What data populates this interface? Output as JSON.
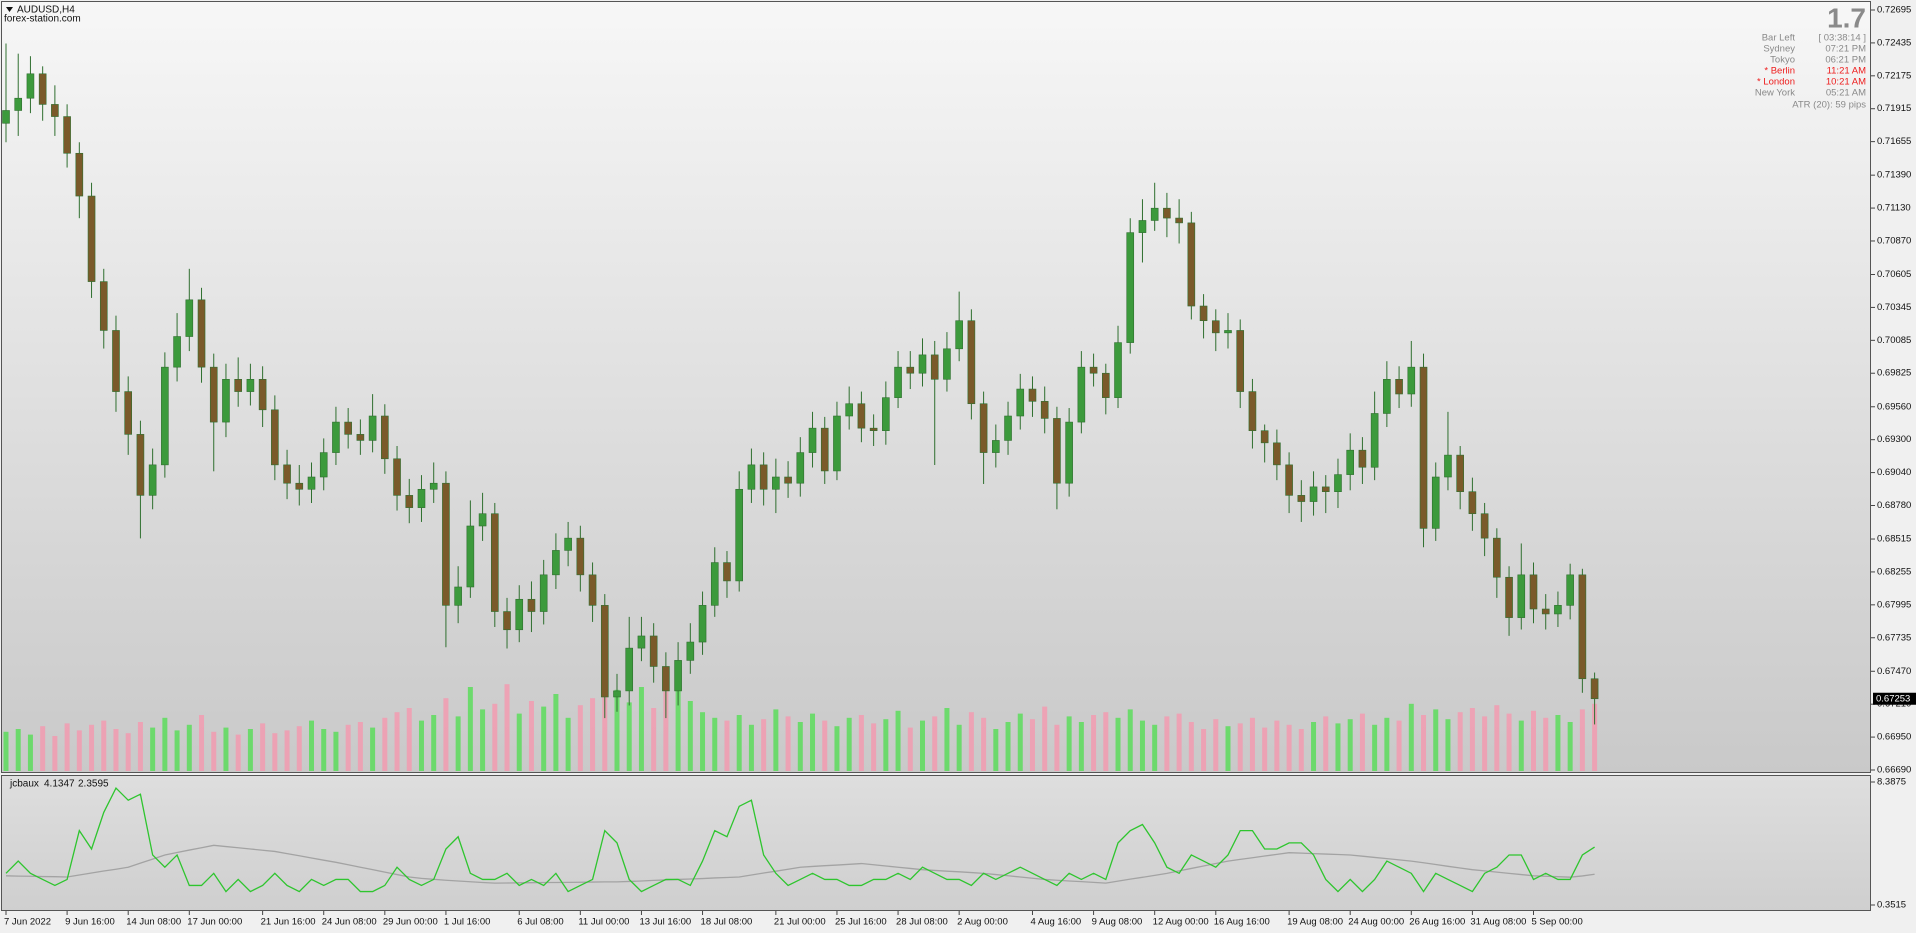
{
  "window": {
    "symbol": "AUDUSD,H4",
    "watermark": "forex-station.com"
  },
  "info_panel": {
    "spread": 1.7,
    "rows": [
      {
        "label": "Bar Left",
        "time": "[ 03:38:14 ]",
        "highlight": false
      },
      {
        "label": "Sydney",
        "time": "07:21 PM",
        "highlight": false
      },
      {
        "label": "Tokyo",
        "time": "06:21 PM",
        "highlight": false
      },
      {
        "label": "* Berlin",
        "time": "11:21 AM",
        "highlight": true
      },
      {
        "label": "* London",
        "time": "10:21 AM",
        "highlight": true
      },
      {
        "label": "New York",
        "time": "05:21 AM",
        "highlight": false
      }
    ],
    "atr": "ATR (20): 59 pips"
  },
  "chart_data": [
    {
      "type": "candlestick",
      "categories": [
        "7 Jun 2022",
        null,
        null,
        null,
        null,
        "9 Jun 16:00",
        null,
        null,
        null,
        null,
        "14 Jun 08:00",
        null,
        null,
        null,
        null,
        "17 Jun 00:00",
        null,
        null,
        null,
        null,
        null,
        "21 Jun 16:00",
        null,
        null,
        null,
        null,
        "24 Jun 08:00",
        null,
        null,
        null,
        null,
        "29 Jun 00:00",
        null,
        null,
        null,
        null,
        "1 Jul 16:00",
        null,
        null,
        null,
        null,
        null,
        "6 Jul 08:00",
        null,
        null,
        null,
        null,
        "11 Jul 00:00",
        null,
        null,
        null,
        null,
        "13 Jul 16:00",
        null,
        null,
        null,
        null,
        "18 Jul 08:00",
        null,
        null,
        null,
        null,
        null,
        "21 Jul 00:00",
        null,
        null,
        null,
        null,
        "25 Jul 16:00",
        null,
        null,
        null,
        null,
        "28 Jul 08:00",
        null,
        null,
        null,
        null,
        "2 Aug 00:00",
        null,
        null,
        null,
        null,
        null,
        "4 Aug 16:00",
        null,
        null,
        null,
        null,
        "9 Aug 08:00",
        null,
        null,
        null,
        null,
        "12 Aug 00:00",
        null,
        null,
        null,
        null,
        "16 Aug 16:00",
        null,
        null,
        null,
        null,
        null,
        "19 Aug 08:00",
        null,
        null,
        null,
        null,
        "24 Aug 00:00",
        null,
        null,
        null,
        null,
        "26 Aug 16:00",
        null,
        null,
        null,
        null,
        "31 Aug 08:00",
        null,
        null,
        null,
        null,
        "5 Sep 00:00",
        null,
        null,
        null,
        null,
        null
      ],
      "open": [
        0.718,
        0.71901,
        0.71998,
        0.72191,
        0.71949,
        0.71853,
        0.71563,
        0.71225,
        0.70549,
        0.70163,
        0.6968,
        0.69342,
        0.6886,
        0.69101,
        0.69873,
        0.70115,
        0.70405,
        0.69873,
        0.69439,
        0.69777,
        0.6968,
        0.69777,
        0.69536,
        0.69101,
        0.68956,
        0.68908,
        0.69005,
        0.69198,
        0.69439,
        0.69342,
        0.69294,
        0.69487,
        0.69149,
        0.6886,
        0.68763,
        0.68908,
        0.68956,
        0.67991,
        0.68136,
        0.68618,
        0.68715,
        0.67942,
        0.67798,
        0.68039,
        0.67942,
        0.68232,
        0.68425,
        0.68522,
        0.68232,
        0.67991,
        0.67267,
        0.67315,
        0.67653,
        0.67749,
        0.67508,
        0.67315,
        0.67556,
        0.67701,
        0.67991,
        0.68329,
        0.68184,
        0.68908,
        0.69101,
        0.68908,
        0.69005,
        0.68956,
        0.69198,
        0.69391,
        0.69053,
        0.69487,
        0.69584,
        0.69391,
        0.69371,
        0.69632,
        0.69873,
        0.69825,
        0.6997,
        0.69777,
        0.70018,
        0.7024,
        0.69584,
        0.69198,
        0.69294,
        0.69487,
        0.697,
        0.69603,
        0.69468,
        0.68956,
        0.69439,
        0.69873,
        0.69825,
        0.69632,
        0.70067,
        0.70936,
        0.71032,
        0.71129,
        0.71051,
        0.71013,
        0.70356,
        0.7024,
        0.70144,
        0.70163,
        0.6968,
        0.69371,
        0.69275,
        0.69101,
        0.6886,
        0.68811,
        0.68927,
        0.68889,
        0.69024,
        0.69217,
        0.69082,
        0.69507,
        0.69777,
        0.69661,
        0.69873,
        0.68599,
        0.69005,
        0.69178,
        0.68889,
        0.68715,
        0.68522,
        0.68213,
        0.67894,
        0.68232,
        0.67962,
        0.67923,
        0.67991,
        0.68232,
        0.67411
      ],
      "high": [
        0.7243,
        0.7235,
        0.7233,
        0.7225,
        0.721,
        0.7195,
        0.7165,
        0.7133,
        0.7065,
        0.7028,
        0.698,
        0.6945,
        0.6923,
        0.6999,
        0.703,
        0.7065,
        0.705,
        0.6998,
        0.699,
        0.6995,
        0.699,
        0.6988,
        0.6965,
        0.6922,
        0.691,
        0.6912,
        0.6931,
        0.6956,
        0.6955,
        0.6946,
        0.6966,
        0.6958,
        0.6925,
        0.6899,
        0.6902,
        0.6912,
        0.6905,
        0.683,
        0.6882,
        0.6888,
        0.688,
        0.6805,
        0.6815,
        0.6818,
        0.6835,
        0.6856,
        0.6865,
        0.6862,
        0.6833,
        0.6808,
        0.6745,
        0.679,
        0.679,
        0.6785,
        0.6762,
        0.677,
        0.6785,
        0.681,
        0.6845,
        0.6842,
        0.6905,
        0.6923,
        0.692,
        0.6915,
        0.6913,
        0.6932,
        0.6952,
        0.6948,
        0.696,
        0.6972,
        0.6968,
        0.695,
        0.6976,
        0.7,
        0.7,
        0.701,
        0.7008,
        0.7015,
        0.7047,
        0.7033,
        0.6968,
        0.6942,
        0.696,
        0.6982,
        0.698,
        0.6972,
        0.6956,
        0.6955,
        0.7,
        0.6998,
        0.699,
        0.702,
        0.7105,
        0.712,
        0.7133,
        0.7125,
        0.712,
        0.711,
        0.7045,
        0.7033,
        0.703,
        0.7025,
        0.6978,
        0.6942,
        0.6938,
        0.692,
        0.6898,
        0.6905,
        0.6902,
        0.6915,
        0.6935,
        0.6932,
        0.6968,
        0.6992,
        0.6988,
        0.7008,
        0.6998,
        0.6912,
        0.6952,
        0.6925,
        0.69,
        0.688,
        0.686,
        0.683,
        0.6848,
        0.6833,
        0.6808,
        0.681,
        0.6832,
        0.6828,
        0.6746
      ],
      "low": [
        0.7165,
        0.717,
        0.7188,
        0.7182,
        0.717,
        0.7145,
        0.7105,
        0.7042,
        0.7002,
        0.6952,
        0.6918,
        0.6852,
        0.6875,
        0.69,
        0.6976,
        0.7,
        0.6975,
        0.6905,
        0.6932,
        0.6956,
        0.6957,
        0.694,
        0.6898,
        0.6883,
        0.6878,
        0.688,
        0.689,
        0.691,
        0.6923,
        0.6918,
        0.692,
        0.6903,
        0.6874,
        0.6864,
        0.6865,
        0.688,
        0.6766,
        0.6785,
        0.6805,
        0.685,
        0.6782,
        0.6765,
        0.677,
        0.6778,
        0.6784,
        0.6812,
        0.683,
        0.681,
        0.6786,
        0.671,
        0.6715,
        0.672,
        0.6755,
        0.6738,
        0.671,
        0.672,
        0.6745,
        0.676,
        0.679,
        0.6805,
        0.681,
        0.688,
        0.6878,
        0.6872,
        0.6884,
        0.6885,
        0.6908,
        0.6895,
        0.6898,
        0.6938,
        0.6928,
        0.6925,
        0.6926,
        0.6955,
        0.697,
        0.6972,
        0.691,
        0.6968,
        0.6992,
        0.6946,
        0.6895,
        0.6908,
        0.6918,
        0.6938,
        0.6948,
        0.6935,
        0.6875,
        0.6885,
        0.6935,
        0.6972,
        0.695,
        0.6955,
        0.6998,
        0.707,
        0.7095,
        0.709,
        0.7085,
        0.7025,
        0.701,
        0.7,
        0.7002,
        0.6955,
        0.6923,
        0.6912,
        0.6898,
        0.6872,
        0.6865,
        0.687,
        0.6872,
        0.6876,
        0.689,
        0.6895,
        0.6898,
        0.694,
        0.6955,
        0.6956,
        0.6845,
        0.685,
        0.689,
        0.6875,
        0.6858,
        0.6838,
        0.6805,
        0.6775,
        0.678,
        0.6785,
        0.678,
        0.6782,
        0.6788,
        0.673,
        0.6705
      ],
      "close": [
        0.71901,
        0.71998,
        0.72191,
        0.71949,
        0.71853,
        0.71563,
        0.71225,
        0.70549,
        0.70163,
        0.6968,
        0.69342,
        0.6886,
        0.69101,
        0.69873,
        0.70115,
        0.70405,
        0.69873,
        0.69439,
        0.69777,
        0.6968,
        0.69777,
        0.69536,
        0.69101,
        0.68956,
        0.68908,
        0.69005,
        0.69198,
        0.69439,
        0.69342,
        0.69294,
        0.69487,
        0.69149,
        0.6886,
        0.68763,
        0.68908,
        0.68956,
        0.67991,
        0.68136,
        0.68618,
        0.68715,
        0.67942,
        0.67798,
        0.68039,
        0.67942,
        0.68232,
        0.68425,
        0.68522,
        0.68232,
        0.67991,
        0.67267,
        0.67315,
        0.67653,
        0.67749,
        0.67508,
        0.67315,
        0.67556,
        0.67701,
        0.67991,
        0.68329,
        0.68184,
        0.68908,
        0.69101,
        0.68908,
        0.69005,
        0.68956,
        0.69198,
        0.69391,
        0.69053,
        0.69487,
        0.69584,
        0.69391,
        0.69371,
        0.69632,
        0.69873,
        0.69825,
        0.6997,
        0.69777,
        0.70018,
        0.7024,
        0.69584,
        0.69198,
        0.69294,
        0.69487,
        0.697,
        0.69603,
        0.69468,
        0.68956,
        0.69439,
        0.69873,
        0.69825,
        0.69632,
        0.70067,
        0.70936,
        0.71032,
        0.71129,
        0.71051,
        0.71013,
        0.70356,
        0.7024,
        0.70144,
        0.70163,
        0.6968,
        0.69371,
        0.69275,
        0.69101,
        0.6886,
        0.68811,
        0.68927,
        0.68889,
        0.69024,
        0.69217,
        0.69082,
        0.69507,
        0.69777,
        0.69661,
        0.69873,
        0.68599,
        0.69005,
        0.69178,
        0.68889,
        0.68715,
        0.68522,
        0.68213,
        0.67894,
        0.68232,
        0.67962,
        0.67923,
        0.67991,
        0.68232,
        0.67411,
        0.67253
      ],
      "volume": [
        28,
        30,
        26,
        32,
        25,
        34,
        29,
        33,
        36,
        30,
        27,
        35,
        31,
        38,
        29,
        33,
        40,
        28,
        31,
        26,
        30,
        34,
        27,
        29,
        32,
        36,
        30,
        28,
        33,
        35,
        31,
        38,
        42,
        45,
        36,
        40,
        52,
        39,
        60,
        44,
        48,
        62,
        41,
        50,
        46,
        55,
        38,
        47,
        52,
        64,
        58,
        49,
        60,
        45,
        57,
        63,
        50,
        42,
        38,
        36,
        40,
        33,
        37,
        44,
        39,
        35,
        41,
        36,
        32,
        38,
        40,
        34,
        37,
        43,
        31,
        36,
        39,
        45,
        33,
        42,
        38,
        30,
        35,
        41,
        37,
        46,
        33,
        39,
        35,
        40,
        42,
        38,
        44,
        36,
        33,
        39,
        41,
        35,
        30,
        37,
        32,
        34,
        38,
        31,
        36,
        33,
        30,
        35,
        39,
        34,
        37,
        41,
        33,
        38,
        36,
        48,
        40,
        44,
        37,
        42,
        45,
        39,
        47,
        41,
        36,
        43,
        38,
        40,
        35,
        44,
        48
      ],
      "up_color": "#3c9a3c",
      "down_color": "#7a5a2a",
      "wick_color": "#2f6f2f",
      "volume_up_color": "#5cdc5c",
      "volume_down_color": "#f29bb0",
      "ylim": [
        0.6669,
        0.72695
      ],
      "yticks": [
        0.72695,
        0.72435,
        0.72175,
        0.71915,
        0.71655,
        {
          "value": 0.7139,
          "label": "0.71390"
        },
        {
          "value": 0.7113,
          "label": "0.71130"
        },
        {
          "value": 0.7087,
          "label": "0.70870"
        },
        0.70605,
        0.70345,
        0.70085,
        0.69825,
        {
          "value": 0.6956,
          "label": "0.69560"
        },
        {
          "value": 0.693,
          "label": "0.69300"
        },
        {
          "value": 0.6904,
          "label": "0.69040"
        },
        {
          "value": 0.6878,
          "label": "0.68780"
        },
        0.68515,
        0.68255,
        0.67995,
        0.67735,
        {
          "value": 0.6747,
          "label": "0.67470"
        },
        {
          "value": 0.6721,
          "label": "0.67210"
        },
        {
          "value": 0.6695,
          "label": "0.66950"
        },
        {
          "value": 0.6669,
          "label": "0.66690"
        }
      ],
      "last_price": 0.67253,
      "grid": false
    },
    {
      "type": "line",
      "title": "jcbaux",
      "series": [
        {
          "color": "#2ec52e",
          "values": [
            2.42,
            3.22,
            2.42,
            2.02,
            1.63,
            2.02,
            5.21,
            4.01,
            6.4,
            7.99,
            7.2,
            7.59,
            3.62,
            2.82,
            3.62,
            1.63,
            1.63,
            2.42,
            1.23,
            2.02,
            1.23,
            1.63,
            2.42,
            1.63,
            1.23,
            2.02,
            1.63,
            2.02,
            2.02,
            1.23,
            1.23,
            1.63,
            2.82,
            2.02,
            1.63,
            2.02,
            4.01,
            4.81,
            2.42,
            2.02,
            2.02,
            2.42,
            1.63,
            2.02,
            1.63,
            2.42,
            1.23,
            1.63,
            2.02,
            5.21,
            4.41,
            2.02,
            1.23,
            1.63,
            2.02,
            2.02,
            1.63,
            3.22,
            5.21,
            4.81,
            6.8,
            7.2,
            3.62,
            2.42,
            1.63,
            2.02,
            2.42,
            2.02,
            2.02,
            1.63,
            1.63,
            2.02,
            2.02,
            2.42,
            2.02,
            2.82,
            2.42,
            2.02,
            2.02,
            1.63,
            2.42,
            2.02,
            2.42,
            2.82,
            2.42,
            2.02,
            1.63,
            2.42,
            2.02,
            2.42,
            2.02,
            4.41,
            5.21,
            5.61,
            4.41,
            2.82,
            2.42,
            3.62,
            3.22,
            2.82,
            3.62,
            5.21,
            5.21,
            4.01,
            4.01,
            4.41,
            4.41,
            3.62,
            2.02,
            1.23,
            2.02,
            1.23,
            2.02,
            3.22,
            2.82,
            2.42,
            1.23,
            2.42,
            2.02,
            1.63,
            1.23,
            2.42,
            2.82,
            3.62,
            3.62,
            2.02,
            2.42,
            2.02,
            2.02,
            3.62,
            4.1347
          ]
        },
        {
          "color": "#a3a3a3",
          "values": [
            2.26,
            2.24,
            2.23,
            2.21,
            2.2,
            2.18,
            2.31,
            2.44,
            2.57,
            2.69,
            2.82,
            3.09,
            3.35,
            3.62,
            3.78,
            3.94,
            4.09,
            4.25,
            4.17,
            4.09,
            4.01,
            3.93,
            3.85,
            3.71,
            3.57,
            3.42,
            3.28,
            3.14,
            2.98,
            2.82,
            2.66,
            2.5,
            2.34,
            2.18,
            2.09,
            2.03,
            1.97,
            1.92,
            1.87,
            1.82,
            1.78,
            1.79,
            1.8,
            1.81,
            1.82,
            1.82,
            1.83,
            1.84,
            1.85,
            1.86,
            1.86,
            1.89,
            1.92,
            1.96,
            1.99,
            2.02,
            2.05,
            2.08,
            2.12,
            2.15,
            2.18,
            2.31,
            2.44,
            2.56,
            2.69,
            2.82,
            2.87,
            2.92,
            2.96,
            3.01,
            3.06,
            2.98,
            2.9,
            2.82,
            2.74,
            2.66,
            2.61,
            2.56,
            2.52,
            2.47,
            2.42,
            2.34,
            2.26,
            2.18,
            2.1,
            2.02,
            1.97,
            1.92,
            1.88,
            1.83,
            1.78,
            1.91,
            2.04,
            2.16,
            2.29,
            2.42,
            2.58,
            2.74,
            2.9,
            3.06,
            3.22,
            3.33,
            3.44,
            3.55,
            3.66,
            3.77,
            3.74,
            3.71,
            3.68,
            3.65,
            3.62,
            3.54,
            3.46,
            3.38,
            3.3,
            3.22,
            3.11,
            3.0,
            2.88,
            2.77,
            2.66,
            2.58,
            2.5,
            2.42,
            2.34,
            2.26,
            2.23,
            2.2,
            2.17,
            2.25,
            2.3595
          ]
        }
      ],
      "ylim": [
        0.3515,
        8.3875
      ],
      "yticks": [
        8.3875,
        0.3515
      ]
    }
  ]
}
